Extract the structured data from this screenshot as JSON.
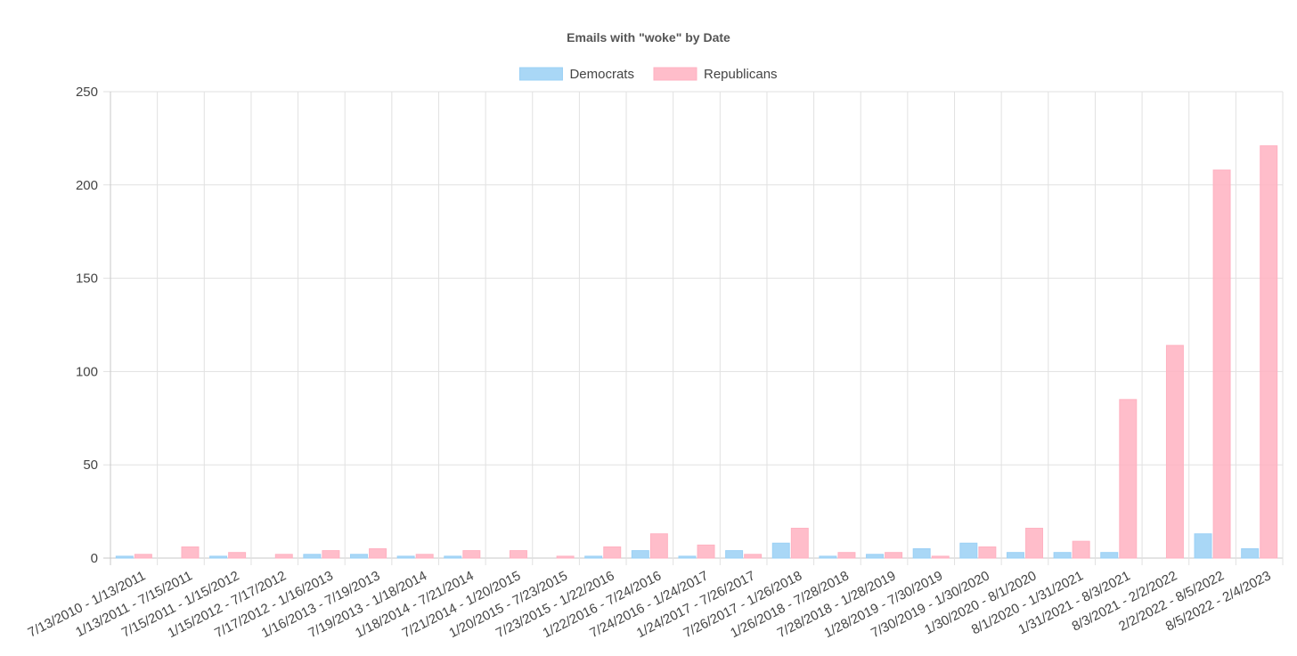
{
  "chart_data": {
    "type": "bar",
    "title": "Emails with \"woke\" by Date",
    "categories": [
      "7/13/2010 - 1/13/2011",
      "1/13/2011 - 7/15/2011",
      "7/15/2011 - 1/15/2012",
      "1/15/2012 - 7/17/2012",
      "7/17/2012 - 1/16/2013",
      "1/16/2013 - 7/19/2013",
      "7/19/2013 - 1/18/2014",
      "1/18/2014 - 7/21/2014",
      "7/21/2014 - 1/20/2015",
      "1/20/2015 - 7/23/2015",
      "7/23/2015 - 1/22/2016",
      "1/22/2016 - 7/24/2016",
      "7/24/2016 - 1/24/2017",
      "1/24/2017 - 7/26/2017",
      "7/26/2017 - 1/26/2018",
      "1/26/2018 - 7/28/2018",
      "7/28/2018 - 1/28/2019",
      "1/28/2019 - 7/30/2019",
      "7/30/2019 - 1/30/2020",
      "1/30/2020 - 8/1/2020",
      "8/1/2020 - 1/31/2021",
      "1/31/2021 - 8/3/2021",
      "8/3/2021 - 2/2/2022",
      "2/2/2022 - 8/5/2022",
      "8/5/2022 - 2/4/2023"
    ],
    "series": [
      {
        "name": "Democrats",
        "color": "#9ad0f5",
        "values": [
          1,
          0,
          1,
          0,
          2,
          2,
          1,
          1,
          0,
          0,
          1,
          4,
          1,
          4,
          8,
          1,
          2,
          5,
          8,
          3,
          3,
          3,
          0,
          13,
          5
        ]
      },
      {
        "name": "Republicans",
        "color": "#ffb1c1",
        "values": [
          2,
          6,
          3,
          2,
          4,
          5,
          2,
          4,
          4,
          1,
          6,
          13,
          7,
          2,
          16,
          3,
          3,
          1,
          6,
          16,
          9,
          85,
          114,
          208,
          221
        ]
      }
    ],
    "ylim": [
      0,
      250
    ],
    "yticks": [
      0,
      50,
      100,
      150,
      200,
      250
    ],
    "grid": true,
    "legend": "top"
  }
}
